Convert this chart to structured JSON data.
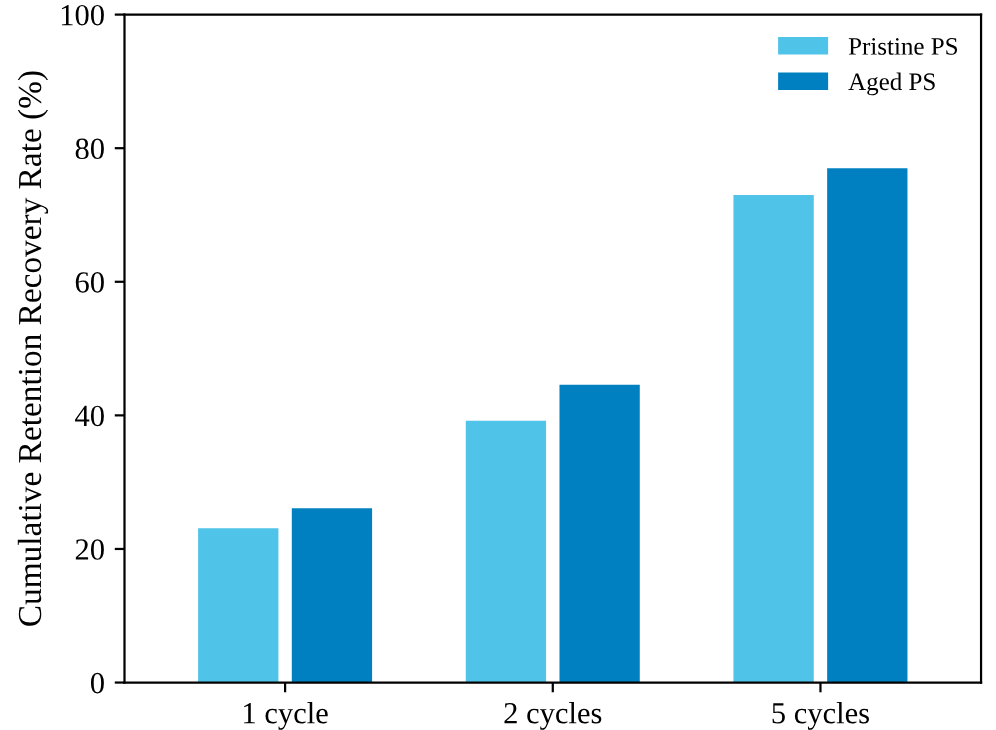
{
  "chart_data": {
    "type": "bar",
    "ylabel": "Cumulative Retention Recovery Rate (%)",
    "categories": [
      "1 cycle",
      "2 cycles",
      "5 cycles"
    ],
    "series": [
      {
        "name": "Pristine PS",
        "color": "#4fc3e8",
        "values": [
          23.1,
          39.2,
          73.0
        ]
      },
      {
        "name": "Aged PS",
        "color": "#0080c0",
        "values": [
          26.1,
          44.6,
          77.0
        ]
      }
    ],
    "ylim": [
      0,
      100
    ],
    "yticks": [
      0,
      20,
      40,
      60,
      80,
      100
    ],
    "grid": false,
    "legend": "top right"
  }
}
